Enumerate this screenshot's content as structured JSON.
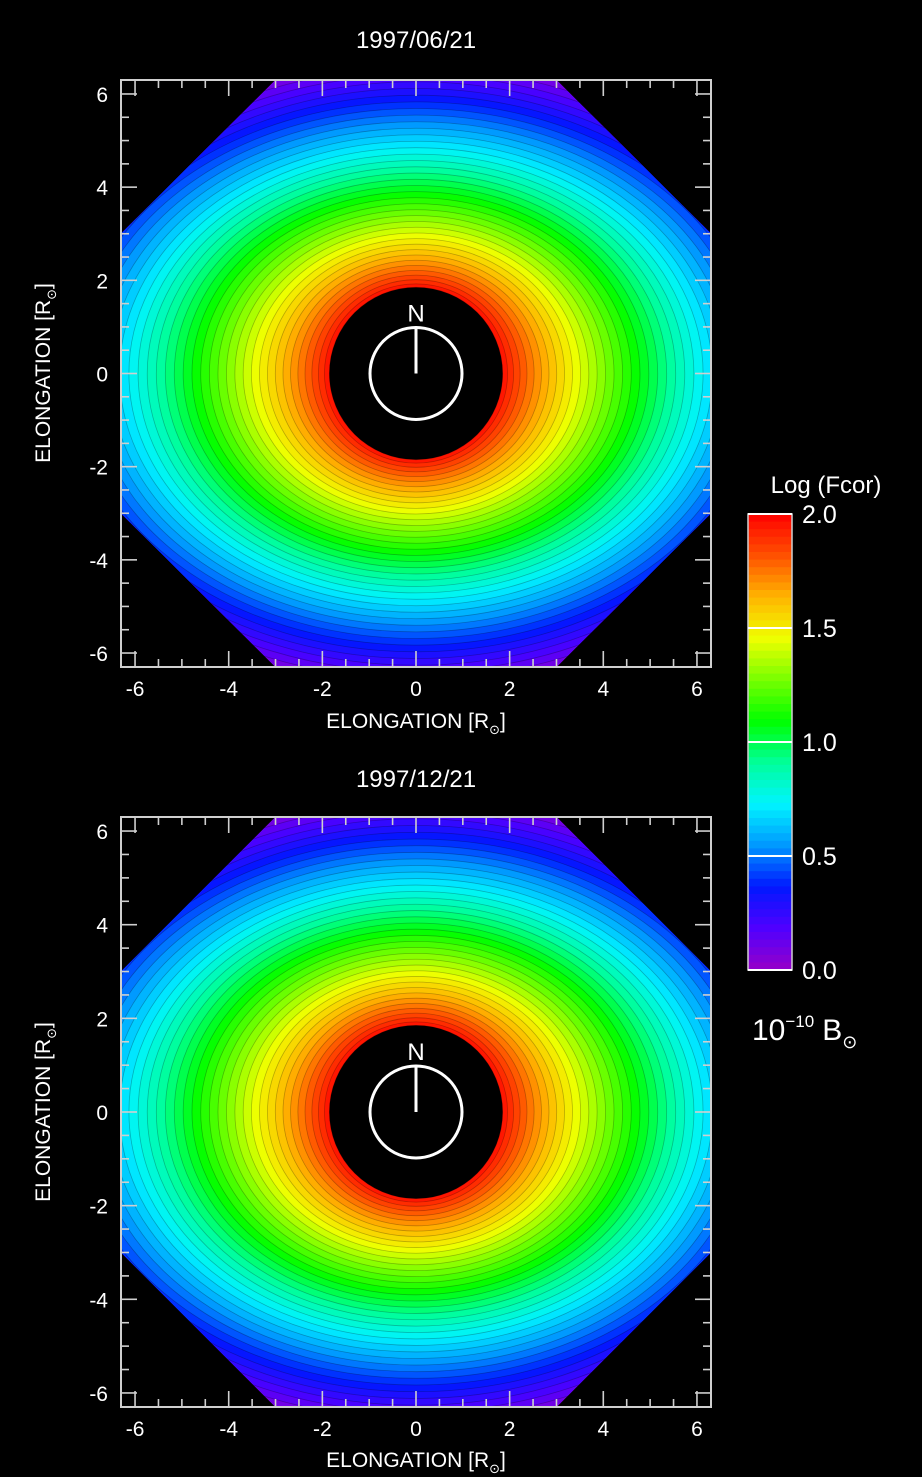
{
  "chart_data": [
    {
      "type": "heatmap",
      "title": "1997/06/21",
      "xlabel": "ELONGATION [R",
      "ylabel": "ELONGATION [R",
      "axis_unit_symbol": "⊙",
      "axis_label_close": "]",
      "xlim": [
        -6.3,
        6.3
      ],
      "ylim": [
        -6.3,
        6.3
      ],
      "xticks": [
        -6,
        -4,
        -2,
        0,
        2,
        4,
        6
      ],
      "yticks": [
        -6,
        -4,
        -2,
        0,
        2,
        4,
        6
      ],
      "occulter_radius": 1.85,
      "field_of_view_corner_cut": 9.3,
      "north_marker": "N",
      "contours": "ellipses elongated along x, log brightness 0.0–2.0"
    },
    {
      "type": "heatmap",
      "title": "1997/12/21",
      "xlabel": "ELONGATION [R",
      "ylabel": "ELONGATION [R",
      "axis_unit_symbol": "⊙",
      "axis_label_close": "]",
      "xlim": [
        -6.3,
        6.3
      ],
      "ylim": [
        -6.3,
        6.3
      ],
      "xticks": [
        -6,
        -4,
        -2,
        0,
        2,
        4,
        6
      ],
      "yticks": [
        -6,
        -4,
        -2,
        0,
        2,
        4,
        6
      ],
      "occulter_radius": 1.85,
      "field_of_view_corner_cut": 9.3,
      "north_marker": "N",
      "contours": "ellipses elongated along x, log brightness 0.0–2.0"
    }
  ],
  "colorbar": {
    "title": "Log (Fcor)",
    "range": [
      0.0,
      2.0
    ],
    "tick_labels": [
      "2.0",
      "1.5",
      "1.0",
      "0.5",
      "0.0"
    ],
    "tick_values": [
      2.0,
      1.5,
      1.0,
      0.5,
      0.0
    ],
    "unit_base": "10",
    "unit_exponent": "−10",
    "unit_symbol": "B",
    "unit_subscript": "⊙",
    "colormap": [
      "#9600c8",
      "#5000ff",
      "#0018ff",
      "#0098ff",
      "#00f4ff",
      "#00ff9a",
      "#00ff00",
      "#78ff00",
      "#f0ff00",
      "#ffb400",
      "#ff5000",
      "#ff0000"
    ]
  }
}
